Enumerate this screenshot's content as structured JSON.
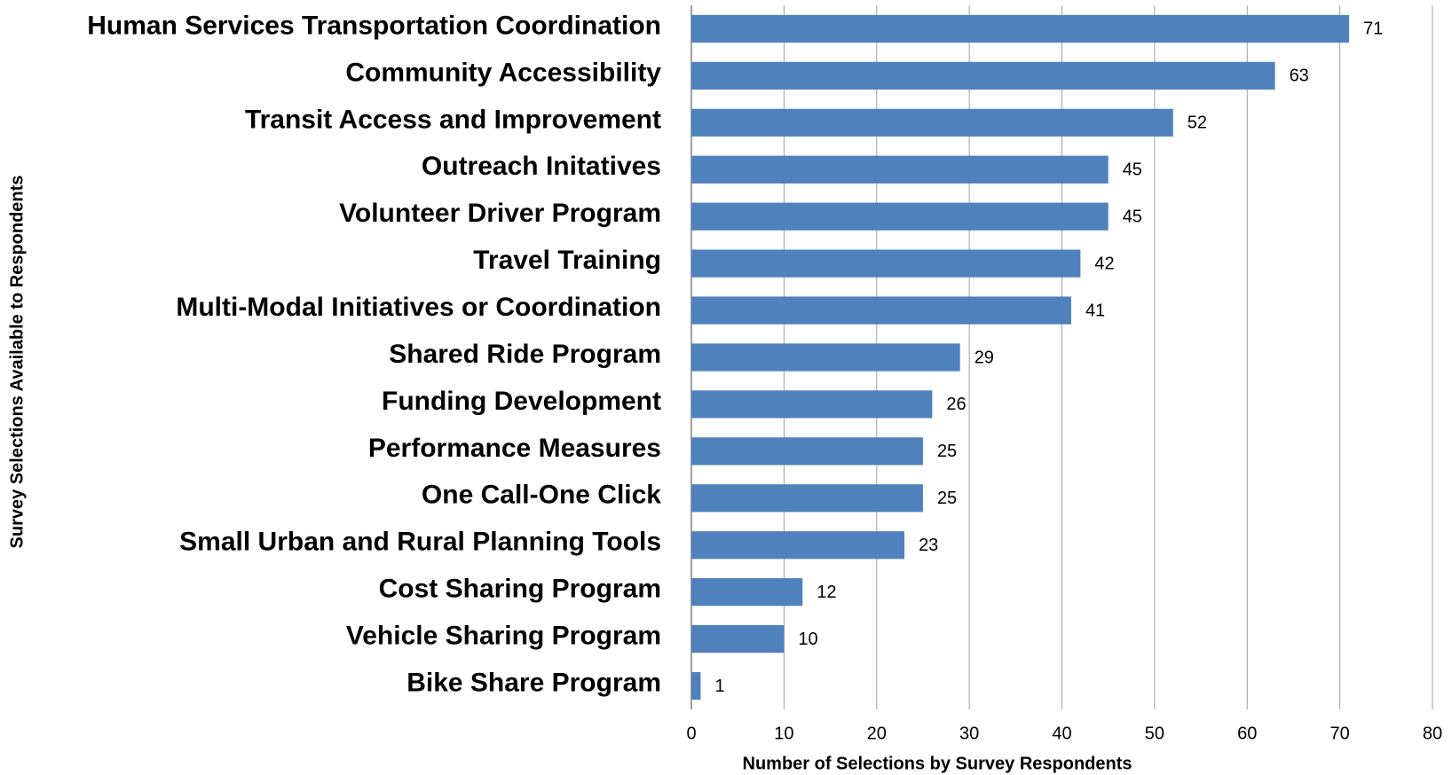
{
  "chart_data": {
    "type": "barh",
    "x_label": "Number of Selections by Survey Respondents",
    "y_label": "Survey Selections Available to Respondents",
    "categories": [
      "Human Services Transportation Coordination",
      "Community Accessibility",
      "Transit Access and Improvement",
      "Outreach Initatives",
      "Volunteer Driver Program",
      "Travel Training",
      "Multi-Modal Initiatives or Coordination",
      "Shared Ride Program",
      "Funding Development",
      "Performance Measures",
      "One Call-One Click",
      "Small Urban and Rural Planning Tools",
      "Cost Sharing Program",
      "Vehicle Sharing Program",
      "Bike Share Program"
    ],
    "values": [
      71,
      63,
      52,
      45,
      45,
      42,
      41,
      29,
      26,
      25,
      25,
      23,
      12,
      10,
      1
    ],
    "color": "#4f81bd",
    "xlim": [
      0,
      80
    ],
    "xticks": [
      0,
      10,
      20,
      30,
      40,
      50,
      60,
      70,
      80
    ],
    "grid": true
  }
}
